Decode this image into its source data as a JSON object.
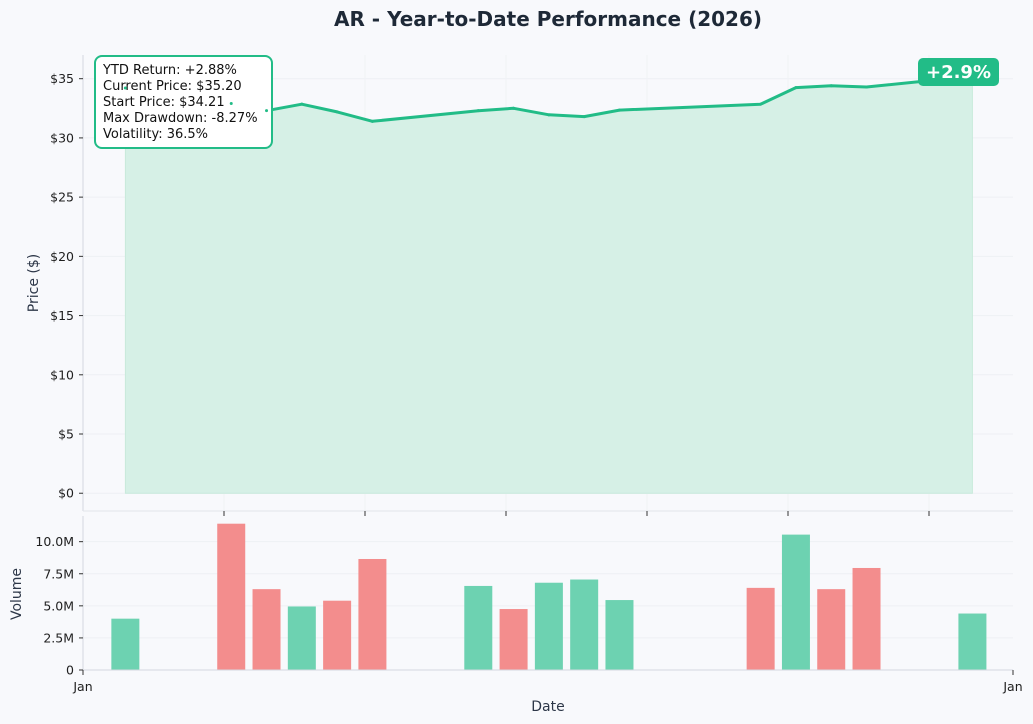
{
  "chart_data": {
    "type": "line",
    "title": "AR - Year-to-Date Performance (2026)",
    "colors": {
      "line": "#22bc87",
      "fill": "#d6f0e6",
      "up": "#6dd2b1",
      "down": "#f38d8d",
      "badge": "#22bc87",
      "text": "#1e2937"
    },
    "price_panel": {
      "ylabel": "Price ($)",
      "ylim": [
        -1.5,
        37
      ],
      "yticks": [
        0,
        5,
        10,
        15,
        20,
        25,
        30,
        35
      ],
      "ytick_labels": [
        "$0",
        "$5",
        "$10",
        "$15",
        "$20",
        "$25",
        "$30",
        "$35"
      ],
      "grid": true,
      "legend": "none",
      "fill_to_zero": true
    },
    "volume_panel": {
      "ylabel": "Volume",
      "ylim": [
        0,
        12000000
      ],
      "yticks": [
        0,
        2500000,
        5000000,
        7500000,
        10000000
      ],
      "ytick_labels": [
        "0",
        "2.5M",
        "5.0M",
        "7.5M",
        "10.0M"
      ]
    },
    "x_axis": {
      "xlabel": "Date",
      "xlim": [
        0,
        26.35
      ],
      "ticks": [
        0,
        26.35
      ],
      "tick_labels": [
        "Jan",
        "Jan"
      ]
    },
    "x": [
      1.2,
      4.2,
      5.2,
      6.2,
      7.2,
      8.2,
      11.2,
      12.2,
      13.2,
      14.2,
      15.2,
      19.2,
      20.2,
      21.2,
      22.2,
      25.2
    ],
    "price": [
      34.21,
      32.9,
      32.3,
      32.85,
      32.2,
      31.4,
      32.3,
      32.5,
      31.95,
      31.8,
      32.35,
      32.85,
      34.25,
      34.4,
      34.3,
      35.2
    ],
    "volume": [
      4000000,
      11400000,
      6300000,
      4950000,
      5400000,
      8650000,
      6550000,
      4750000,
      6800000,
      7050000,
      5450000,
      6400000,
      10550000,
      6300000,
      7950000,
      4400000
    ],
    "volume_direction": [
      "up",
      "down",
      "down",
      "up",
      "down",
      "down",
      "up",
      "down",
      "up",
      "up",
      "up",
      "down",
      "up",
      "down",
      "down",
      "up"
    ],
    "stats": {
      "lines": [
        "YTD Return: +2.88%",
        "Current Price: $35.20",
        "Start Price: $34.21",
        "Max Drawdown: -8.27%",
        "Volatility: 36.5%"
      ]
    },
    "badge": "+2.9%"
  }
}
